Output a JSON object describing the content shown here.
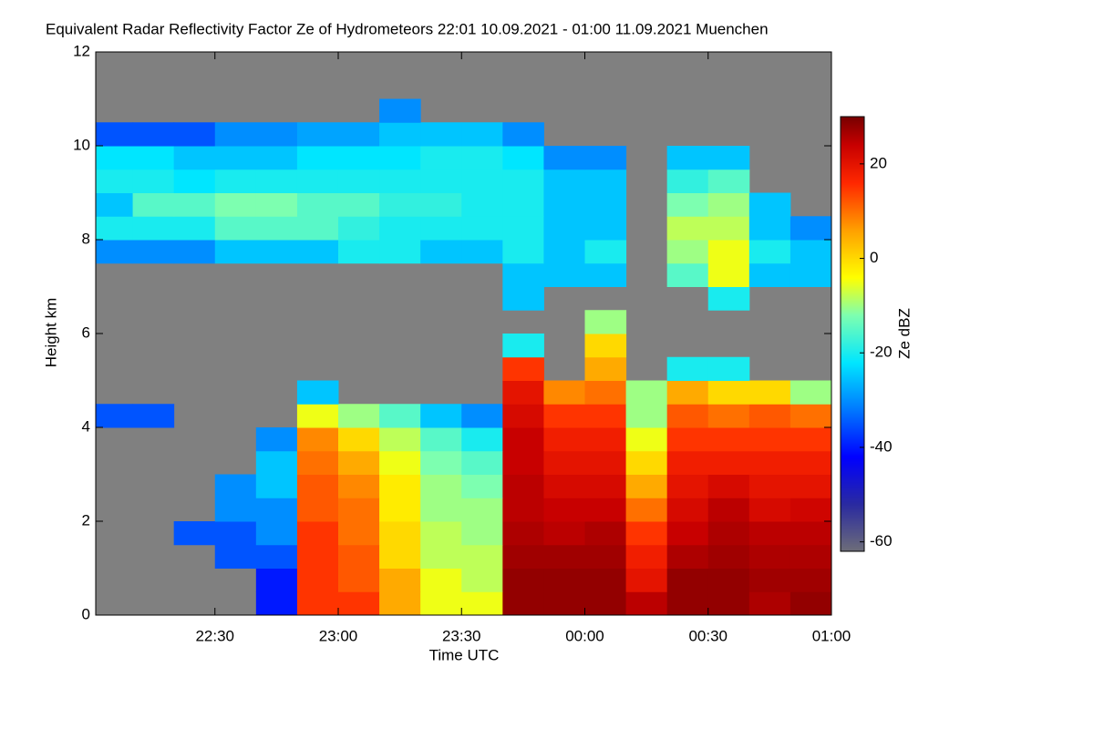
{
  "chart_data": {
    "type": "heatmap",
    "title": "Equivalent Radar Reflectivity Factor Ze of Hydrometeors   22:01 10.09.2021 - 01:00 11.09.2021 Muenchen",
    "xlabel": "Time UTC",
    "ylabel": "Height km",
    "colorbar_label": "Ze dBZ",
    "xlim": [
      1321,
      1500
    ],
    "xticks": [
      {
        "value": 1350,
        "label": "22:30"
      },
      {
        "value": 1380,
        "label": "23:00"
      },
      {
        "value": 1410,
        "label": "23:30"
      },
      {
        "value": 1440,
        "label": "00:00"
      },
      {
        "value": 1470,
        "label": "00:30"
      },
      {
        "value": 1500,
        "label": "01:00"
      }
    ],
    "ylim": [
      0,
      12
    ],
    "yticks": [
      0,
      2,
      4,
      6,
      8,
      10,
      12
    ],
    "zlim": [
      -62,
      30
    ],
    "zticks": [
      -60,
      -40,
      -20,
      0,
      20
    ],
    "nodata_color": "#808080",
    "colorscale": [
      [
        -62,
        "#6e6e78"
      ],
      [
        -52,
        "#2a2aa0"
      ],
      [
        -42,
        "#0000ff"
      ],
      [
        -32,
        "#0078ff"
      ],
      [
        -22,
        "#00e6ff"
      ],
      [
        -12,
        "#7dffb0"
      ],
      [
        -4,
        "#ffff00"
      ],
      [
        6,
        "#ffa000"
      ],
      [
        16,
        "#ff2800"
      ],
      [
        24,
        "#c80000"
      ],
      [
        30,
        "#780000"
      ]
    ],
    "xbins": [
      1320,
      1330,
      1340,
      1350,
      1360,
      1370,
      1380,
      1390,
      1400,
      1410,
      1420,
      1430,
      1440,
      1450,
      1460,
      1470,
      1480,
      1490,
      1500
    ],
    "ybins": [
      0,
      0.5,
      1,
      1.5,
      2,
      2.5,
      3,
      3.5,
      4,
      4.5,
      5,
      5.5,
      6,
      6.5,
      7,
      7.5,
      8,
      8.5,
      9,
      9.5,
      10,
      10.5,
      11,
      11.5,
      12
    ],
    "values": [
      [
        null,
        null,
        null,
        null,
        -40,
        15,
        15,
        5,
        -5,
        -5,
        28,
        28,
        28,
        25,
        28,
        28,
        26,
        28
      ],
      [
        null,
        null,
        null,
        null,
        -40,
        15,
        12,
        5,
        -5,
        -8,
        28,
        28,
        28,
        20,
        28,
        28,
        27,
        27
      ],
      [
        null,
        null,
        null,
        -35,
        -35,
        15,
        12,
        0,
        -8,
        -8,
        27,
        27,
        27,
        18,
        26,
        27,
        26,
        26
      ],
      [
        null,
        null,
        -35,
        -35,
        -30,
        15,
        10,
        0,
        -8,
        -10,
        26,
        25,
        26,
        15,
        24,
        26,
        25,
        25
      ],
      [
        null,
        null,
        null,
        -30,
        -30,
        12,
        10,
        -2,
        -10,
        -10,
        25,
        24,
        24,
        10,
        22,
        25,
        22,
        23
      ],
      [
        null,
        null,
        null,
        -30,
        -25,
        12,
        8,
        -2,
        -10,
        -12,
        25,
        22,
        22,
        5,
        20,
        22,
        20,
        20
      ],
      [
        null,
        null,
        null,
        null,
        -25,
        10,
        5,
        -5,
        -12,
        -15,
        24,
        20,
        20,
        0,
        18,
        18,
        18,
        18
      ],
      [
        null,
        null,
        null,
        null,
        -30,
        8,
        0,
        -8,
        -15,
        -20,
        24,
        18,
        18,
        -5,
        15,
        15,
        15,
        15
      ],
      [
        -35,
        -35,
        null,
        null,
        null,
        -5,
        -10,
        -15,
        -25,
        -30,
        22,
        15,
        15,
        -10,
        12,
        10,
        12,
        10
      ],
      [
        null,
        null,
        null,
        null,
        null,
        -25,
        null,
        null,
        null,
        null,
        20,
        8,
        10,
        -10,
        5,
        0,
        0,
        -10
      ],
      [
        null,
        null,
        null,
        null,
        null,
        null,
        null,
        null,
        null,
        null,
        15,
        null,
        5,
        null,
        -20,
        -20,
        null,
        null
      ],
      [
        null,
        null,
        null,
        null,
        null,
        null,
        null,
        null,
        null,
        null,
        -20,
        null,
        0,
        null,
        null,
        null,
        null,
        null
      ],
      [
        null,
        null,
        null,
        null,
        null,
        null,
        null,
        null,
        null,
        null,
        null,
        null,
        -10,
        null,
        null,
        null,
        null,
        null
      ],
      [
        null,
        null,
        null,
        null,
        null,
        null,
        null,
        null,
        null,
        null,
        -25,
        null,
        null,
        null,
        null,
        -20,
        null,
        null
      ],
      [
        null,
        null,
        null,
        null,
        null,
        null,
        null,
        null,
        null,
        null,
        -25,
        -25,
        -25,
        null,
        -15,
        -5,
        -25,
        -25
      ],
      [
        -30,
        -30,
        -30,
        -25,
        -25,
        -25,
        -20,
        -20,
        -25,
        -25,
        -20,
        -25,
        -20,
        null,
        -10,
        -5,
        -20,
        -25
      ],
      [
        -20,
        -20,
        -20,
        -15,
        -15,
        -15,
        -18,
        -20,
        -20,
        -20,
        -20,
        -25,
        -25,
        null,
        -8,
        -8,
        -25,
        -30
      ],
      [
        -25,
        -15,
        -15,
        -12,
        -12,
        -15,
        -15,
        -18,
        -18,
        -20,
        -20,
        -25,
        -25,
        null,
        -12,
        -10,
        -25,
        null
      ],
      [
        -20,
        -20,
        -22,
        -20,
        -20,
        -20,
        -20,
        -20,
        -20,
        -20,
        -20,
        -25,
        -25,
        null,
        -18,
        -15,
        null,
        null
      ],
      [
        -22,
        -22,
        -25,
        -25,
        -25,
        -22,
        -22,
        -22,
        -20,
        -20,
        -22,
        -30,
        -30,
        null,
        -25,
        -25,
        null,
        null
      ],
      [
        -35,
        -35,
        -35,
        -30,
        -30,
        -28,
        -28,
        -25,
        -25,
        -25,
        -30,
        null,
        null,
        null,
        null,
        null,
        null,
        null
      ],
      [
        null,
        null,
        null,
        null,
        null,
        null,
        null,
        -30,
        null,
        null,
        null,
        null,
        null,
        null,
        null,
        null,
        null,
        null
      ],
      [
        null,
        null,
        null,
        null,
        null,
        null,
        null,
        null,
        null,
        null,
        null,
        null,
        null,
        null,
        null,
        null,
        null,
        null
      ],
      [
        null,
        null,
        null,
        null,
        null,
        null,
        null,
        null,
        null,
        null,
        null,
        null,
        null,
        null,
        null,
        null,
        null,
        null
      ]
    ]
  }
}
